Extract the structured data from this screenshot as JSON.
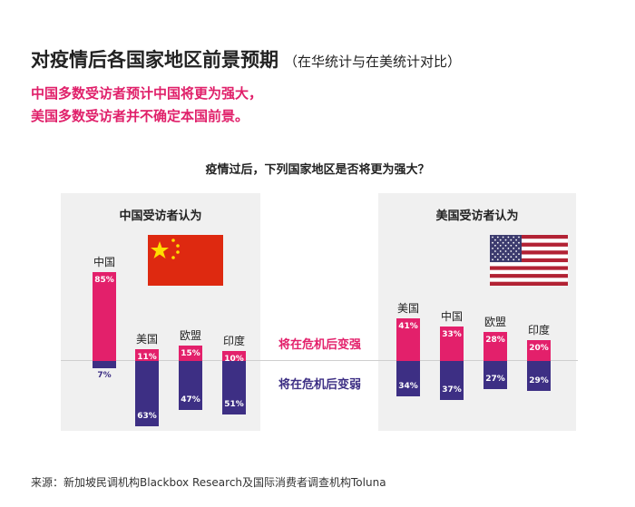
{
  "header": {
    "title": "对疫情后各国家地区前景预期",
    "title_note": "（在华统计与在美统计对比）",
    "subtitle_1": "中国多数受访者预计中国将更为强大，",
    "subtitle_2": "美国多数受访者并不确定本国前景。"
  },
  "legend": {
    "stronger": "将在危机后变强",
    "weaker": "将在危机后变弱"
  },
  "colors": {
    "stronger": "#e3206b",
    "weaker": "#3d2f84",
    "panel": "#f0f0f0"
  },
  "source": "来源：新加坡民调机构Blackbox Research及国际消费者调查机构Toluna",
  "chart_data": [
    {
      "type": "bar",
      "title": "疫情过后，下列国家地区是否将更为强大？",
      "panel_title": "中国受访者认为",
      "flag": "china-flag",
      "categories": [
        "中国",
        "美国",
        "欧盟",
        "印度"
      ],
      "series": [
        {
          "name": "将在危机后变强",
          "values": [
            85,
            11,
            15,
            10
          ]
        },
        {
          "name": "将在危机后变弱",
          "values": [
            7,
            63,
            47,
            51
          ]
        }
      ],
      "value_labels": {
        "stronger": [
          "85%",
          "11%",
          "15%",
          "10%"
        ],
        "weaker": [
          "7%",
          "63%",
          "47%",
          "51%"
        ]
      }
    },
    {
      "type": "bar",
      "panel_title": "美国受访者认为",
      "flag": "usa-flag",
      "categories": [
        "美国",
        "中国",
        "欧盟",
        "印度"
      ],
      "series": [
        {
          "name": "将在危机后变强",
          "values": [
            41,
            33,
            28,
            20
          ]
        },
        {
          "name": "将在危机后变弱",
          "values": [
            34,
            37,
            27,
            29
          ]
        }
      ],
      "value_labels": {
        "stronger": [
          "41%",
          "33%",
          "28%",
          "20%"
        ],
        "weaker": [
          "34%",
          "37%",
          "27%",
          "29%"
        ]
      }
    }
  ]
}
